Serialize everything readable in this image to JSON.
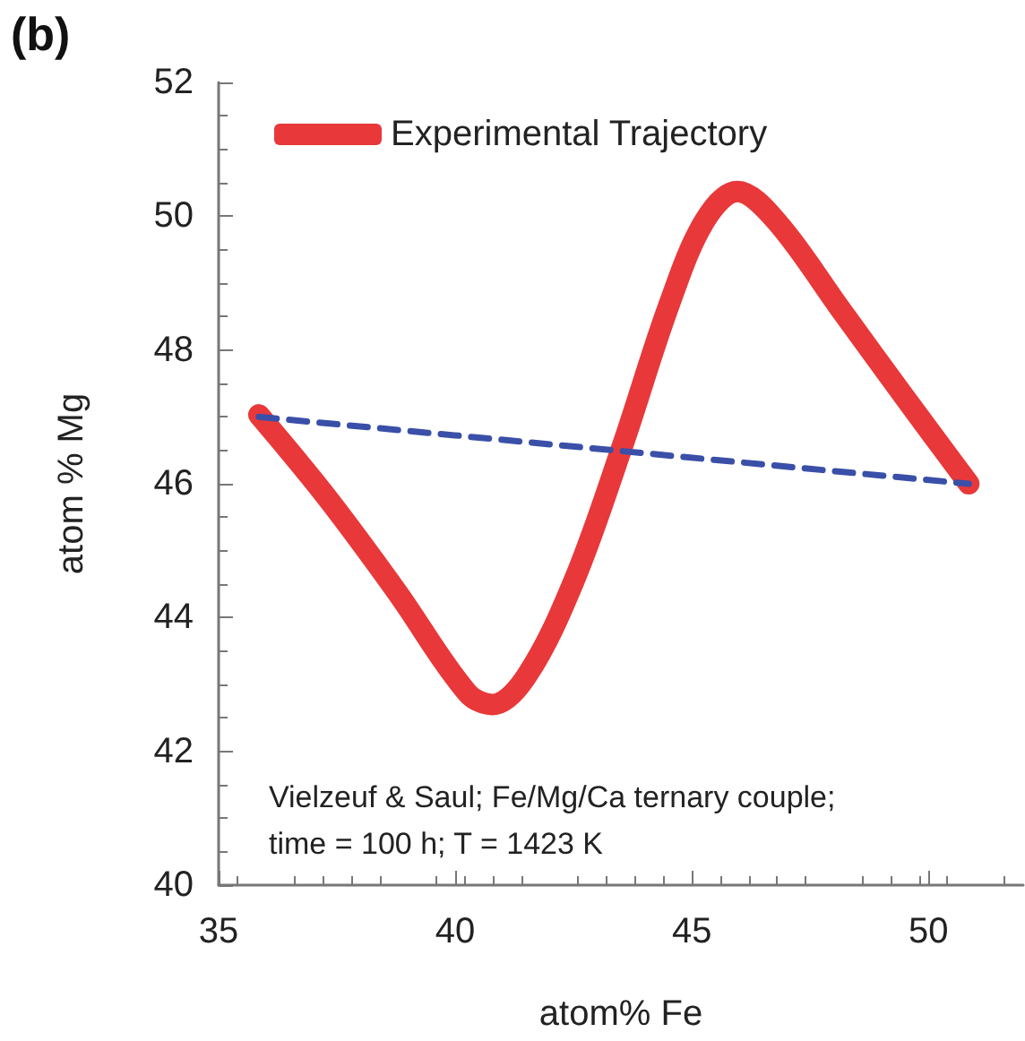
{
  "chart_data": {
    "type": "line",
    "xlabel": "atom% Fe",
    "ylabel": "atom % Mg",
    "xlim": [
      35,
      52
    ],
    "xticks": [
      35,
      40,
      45,
      50
    ],
    "ylim": [
      40,
      52
    ],
    "yticks": [
      40,
      42,
      44,
      46,
      48,
      50,
      52
    ],
    "grid": false,
    "legend": "top left",
    "marker": "none",
    "annotations": [
      "(b)",
      "Vielzeuf & Saul; Fe/Mg/Ca ternary couple;\ntime = 100 h; T = 1423 K"
    ],
    "series": [
      {
        "name": "Experimental Trajectory",
        "color": "#e8383a",
        "line_style": "solid",
        "x": [
          35.85,
          37.26,
          38.76,
          40.26,
          40.79,
          41.52,
          42.52,
          43.52,
          44.52,
          45.27,
          45.96,
          46.78,
          48.16,
          49.54,
          50.85
        ],
        "values": [
          47.03,
          45.82,
          44.39,
          42.87,
          42.7,
          43.14,
          44.57,
          46.54,
          48.68,
          49.93,
          50.37,
          49.93,
          48.59,
          47.25,
          46.0
        ]
      },
      {
        "color": "#3a4fa8",
        "line_style": "dashed",
        "x": [
          35.85,
          50.85
        ],
        "values": [
          47.0,
          46.0
        ]
      }
    ]
  }
}
